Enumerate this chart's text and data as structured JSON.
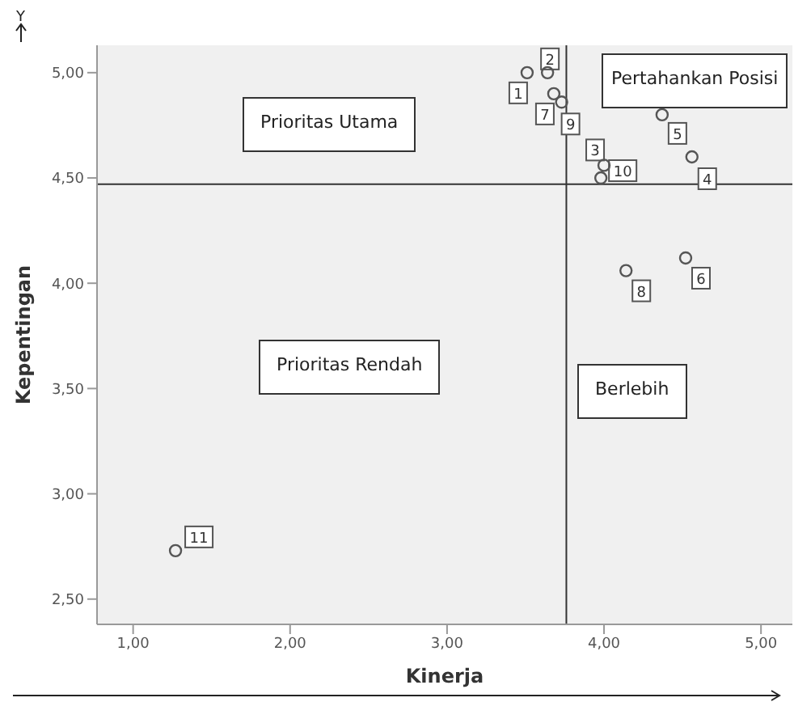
{
  "chart_data": {
    "type": "scatter",
    "xlabel": "Kinerja",
    "ylabel": "Kepentingan",
    "x": [
      3.51,
      3.64,
      4.0,
      4.56,
      4.37,
      4.52,
      3.68,
      4.14,
      3.73,
      3.98,
      1.27
    ],
    "values": [
      5.0,
      5.0,
      4.56,
      4.6,
      4.8,
      4.12,
      4.9,
      4.06,
      4.86,
      4.5,
      2.73
    ],
    "color": "#555555",
    "marker": "circle",
    "xlim": [
      0.77,
      5.2
    ],
    "xticks": [
      {
        "value": 1,
        "label": "1,00"
      },
      {
        "value": 2,
        "label": "2,00"
      },
      {
        "value": 3,
        "label": "3,00"
      },
      {
        "value": 4,
        "label": "4,00"
      },
      {
        "value": 5,
        "label": "5,00"
      }
    ],
    "ylim": [
      2.38,
      5.13
    ],
    "yticks": [
      {
        "value": 2.5,
        "label": "2,50"
      },
      {
        "value": 3,
        "label": "3,00"
      },
      {
        "value": 3.5,
        "label": "3,50"
      },
      {
        "value": 4,
        "label": "4,00"
      },
      {
        "value": 4.5,
        "label": "4,50"
      },
      {
        "value": 5,
        "label": "5,00"
      }
    ],
    "ref_lines": [
      {
        "axis": "x",
        "value": 3.76,
        "color": "#333333"
      },
      {
        "axis": "y",
        "value": 4.47,
        "color": "#333333"
      }
    ],
    "annotations": [
      "Prioritas Utama",
      "Pertahankan Posisi",
      "Prioritas Rendah",
      "Berlebih",
      "Y",
      {
        "text": "1",
        "x": 3.51,
        "y": 5.0
      },
      {
        "text": "2",
        "x": 3.64,
        "y": 5.0
      },
      {
        "text": "3",
        "x": 4.0,
        "y": 4.56
      },
      {
        "text": "4",
        "x": 4.56,
        "y": 4.6
      },
      {
        "text": "5",
        "x": 4.37,
        "y": 4.8
      },
      {
        "text": "6",
        "x": 4.52,
        "y": 4.12
      },
      {
        "text": "7",
        "x": 3.68,
        "y": 4.9
      },
      {
        "text": "8",
        "x": 4.14,
        "y": 4.06
      },
      {
        "text": "9",
        "x": 3.73,
        "y": 4.86
      },
      {
        "text": "10",
        "x": 3.98,
        "y": 4.5
      },
      {
        "text": "11",
        "x": 1.27,
        "y": 2.73
      }
    ],
    "grid": false,
    "legend": false
  }
}
